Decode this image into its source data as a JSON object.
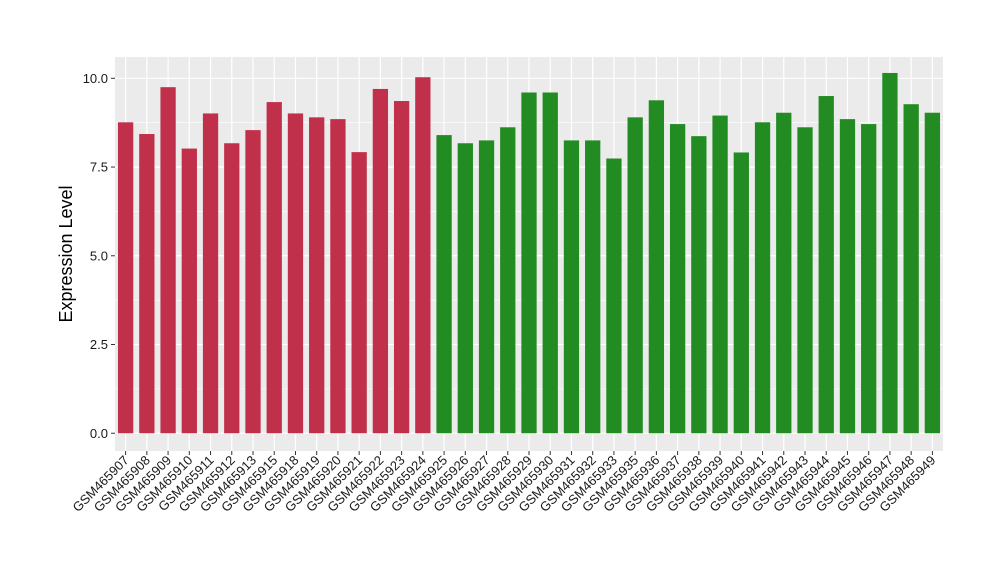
{
  "chart_data": {
    "type": "bar",
    "title": "",
    "xlabel": "",
    "ylabel": "Expression Level",
    "ylim": [
      -0.5,
      10.6
    ],
    "yticks": [
      0.0,
      2.5,
      5.0,
      7.5,
      10.0
    ],
    "ytick_labels": [
      "0.0",
      "2.5",
      "5.0",
      "7.5",
      "10.0"
    ],
    "grid": true,
    "legend": "none",
    "background_color": "#ebebeb",
    "grid_color": "#ffffff",
    "categories": [
      "GSM465907",
      "GSM465908",
      "GSM465909",
      "GSM465910",
      "GSM465911",
      "GSM465912",
      "GSM465913",
      "GSM465915",
      "GSM465918",
      "GSM465919",
      "GSM465920",
      "GSM465921",
      "GSM465922",
      "GSM465923",
      "GSM465924",
      "GSM465925",
      "GSM465926",
      "GSM465927",
      "GSM465928",
      "GSM465929",
      "GSM465930",
      "GSM465931",
      "GSM465932",
      "GSM465933",
      "GSM465935",
      "GSM465936",
      "GSM465937",
      "GSM465938",
      "GSM465939",
      "GSM465940",
      "GSM465941",
      "GSM465942",
      "GSM465943",
      "GSM465944",
      "GSM465945",
      "GSM465946",
      "GSM465947",
      "GSM465948",
      "GSM465949"
    ],
    "values": [
      8.76,
      8.43,
      9.75,
      8.02,
      9.01,
      8.17,
      8.54,
      9.33,
      9.01,
      8.9,
      8.85,
      7.92,
      9.7,
      9.36,
      10.03,
      8.4,
      8.17,
      8.25,
      8.62,
      9.6,
      9.6,
      8.25,
      8.25,
      7.74,
      8.9,
      9.38,
      8.71,
      8.37,
      8.95,
      7.91,
      8.76,
      9.03,
      8.62,
      9.5,
      8.85,
      8.71,
      10.15,
      9.27,
      9.03
    ],
    "bar_colors": [
      "#c0304a",
      "#c0304a",
      "#c0304a",
      "#c0304a",
      "#c0304a",
      "#c0304a",
      "#c0304a",
      "#c0304a",
      "#c0304a",
      "#c0304a",
      "#c0304a",
      "#c0304a",
      "#c0304a",
      "#c0304a",
      "#c0304a",
      "#228b22",
      "#228b22",
      "#228b22",
      "#228b22",
      "#228b22",
      "#228b22",
      "#228b22",
      "#228b22",
      "#228b22",
      "#228b22",
      "#228b22",
      "#228b22",
      "#228b22",
      "#228b22",
      "#228b22",
      "#228b22",
      "#228b22",
      "#228b22",
      "#228b22",
      "#228b22",
      "#228b22",
      "#228b22",
      "#228b22",
      "#228b22"
    ]
  }
}
